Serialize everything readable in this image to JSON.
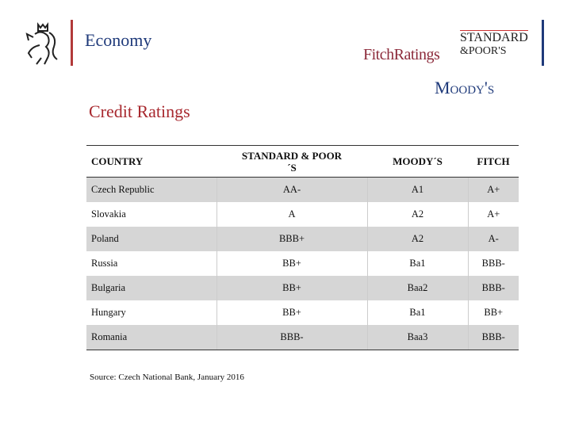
{
  "header": {
    "title": "Economy",
    "logos": {
      "fitch": "FitchRatings",
      "sp_line1": "STANDARD",
      "sp_line2": "&POOR'S",
      "moodys": "Moody's"
    }
  },
  "subtitle": "Credit Ratings",
  "table": {
    "columns": [
      "COUNTRY",
      "STANDARD & POOR´S",
      "MOODY´S",
      "FITCH"
    ],
    "rows": [
      [
        "Czech Republic",
        "AA-",
        "A1",
        "A+"
      ],
      [
        "Slovakia",
        "A",
        "A2",
        "A+"
      ],
      [
        "Poland",
        "BBB+",
        "A2",
        "A-"
      ],
      [
        "Russia",
        "BB+",
        "Ba1",
        "BBB-"
      ],
      [
        "Bulgaria",
        "BB+",
        "Baa2",
        "BBB-"
      ],
      [
        "Hungary",
        "BB+",
        "Ba1",
        "BB+"
      ],
      [
        "Romania",
        "BBB-",
        "Baa3",
        "BBB-"
      ]
    ]
  },
  "source": "Source: Czech National Bank, January 2016",
  "colors": {
    "accent_red": "#b23a3a",
    "accent_blue": "#1f3a7a",
    "row_shade": "#d6d6d6"
  }
}
